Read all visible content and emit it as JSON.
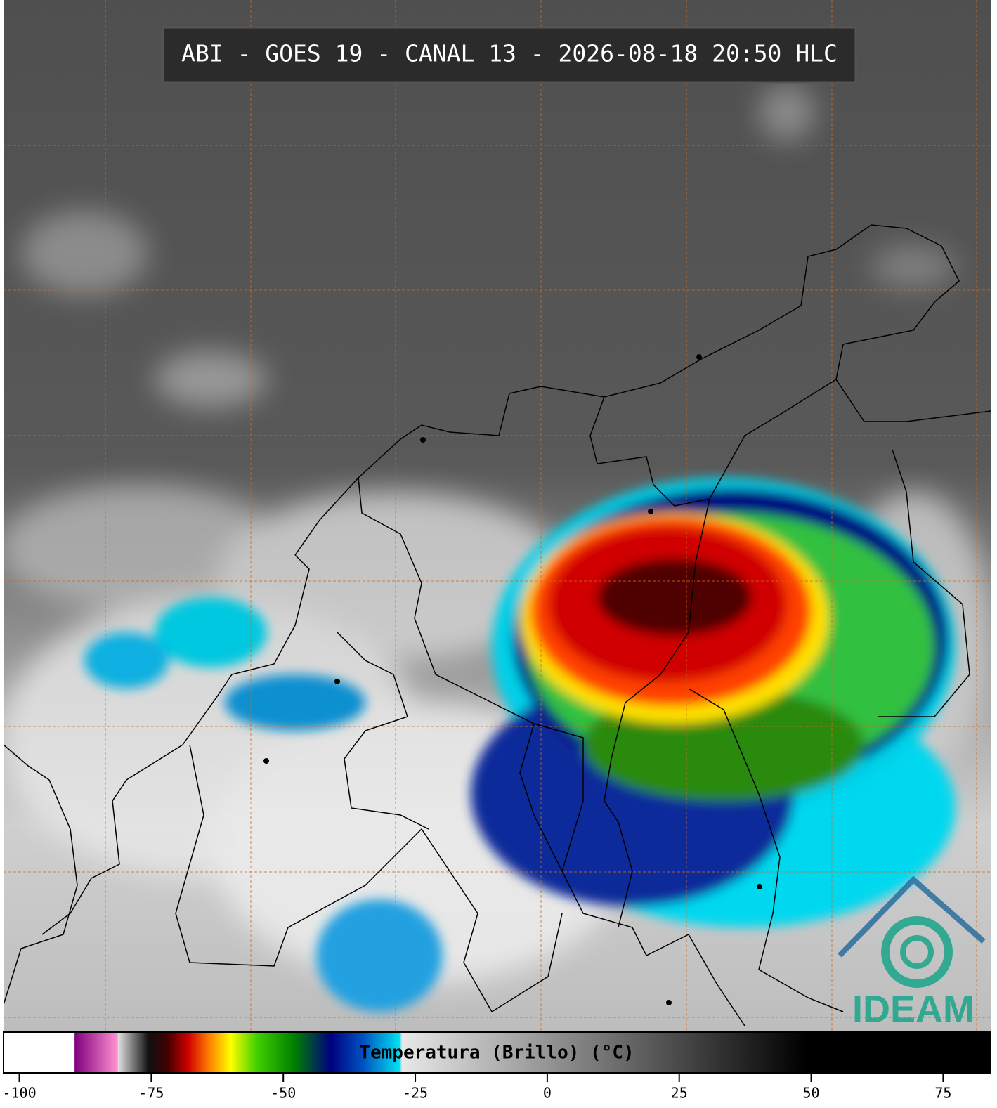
{
  "title": "ABI - GOES 19 - CANAL 13 - 2026-08-18 20:50 HLC",
  "logo": "IDEAM",
  "colorbar": {
    "label": "Temperatura (Brillo) (°C)",
    "lim": [
      -103,
      84
    ],
    "ticks": [
      -100,
      -75,
      -50,
      -25,
      0,
      25,
      50,
      75
    ],
    "stops": [
      {
        "value": -103,
        "color": "#ffffff"
      },
      {
        "value": -89.6,
        "color": "#ffffff"
      },
      {
        "value": -89.5,
        "color": "#800080"
      },
      {
        "value": -81.4,
        "color": "#ff90d0"
      },
      {
        "value": -81.3,
        "color": "#e0e0e0"
      },
      {
        "value": -75.5,
        "color": "#101010"
      },
      {
        "value": -72,
        "color": "#400000"
      },
      {
        "value": -68,
        "color": "#d00000"
      },
      {
        "value": -64,
        "color": "#ff8000"
      },
      {
        "value": -60,
        "color": "#ffff00"
      },
      {
        "value": -55,
        "color": "#40d000"
      },
      {
        "value": -48,
        "color": "#008000"
      },
      {
        "value": -41,
        "color": "#000080"
      },
      {
        "value": -35,
        "color": "#0050c0"
      },
      {
        "value": -28,
        "color": "#00e0f0"
      },
      {
        "value": -27.5,
        "color": "#e8e8e8"
      },
      {
        "value": 49,
        "color": "#000000"
      },
      {
        "value": 84,
        "color": "#000000"
      }
    ]
  }
}
